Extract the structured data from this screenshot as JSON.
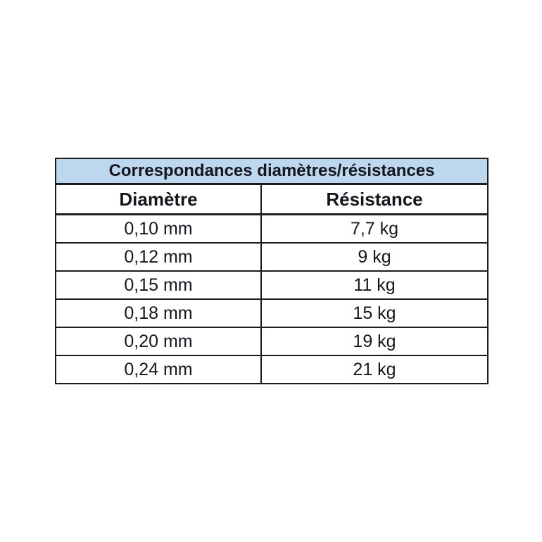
{
  "table": {
    "title": "Correspondances diamètres/résistances",
    "columns": {
      "diametre": "Diamètre",
      "resistance": "Résistance"
    },
    "rows": [
      {
        "diametre": "0,10 mm",
        "resistance": "7,7 kg"
      },
      {
        "diametre": "0,12 mm",
        "resistance": "9 kg"
      },
      {
        "diametre": "0,15 mm",
        "resistance": "11 kg"
      },
      {
        "diametre": "0,18 mm",
        "resistance": "15 kg"
      },
      {
        "diametre": "0,20 mm",
        "resistance": "19 kg"
      },
      {
        "diametre": "0,24 mm",
        "resistance": "21 kg"
      }
    ],
    "colors": {
      "title_background": "#bdd7ee",
      "border": "#1c1c1c",
      "text": "#16161f",
      "page_background": "#ffffff"
    }
  }
}
